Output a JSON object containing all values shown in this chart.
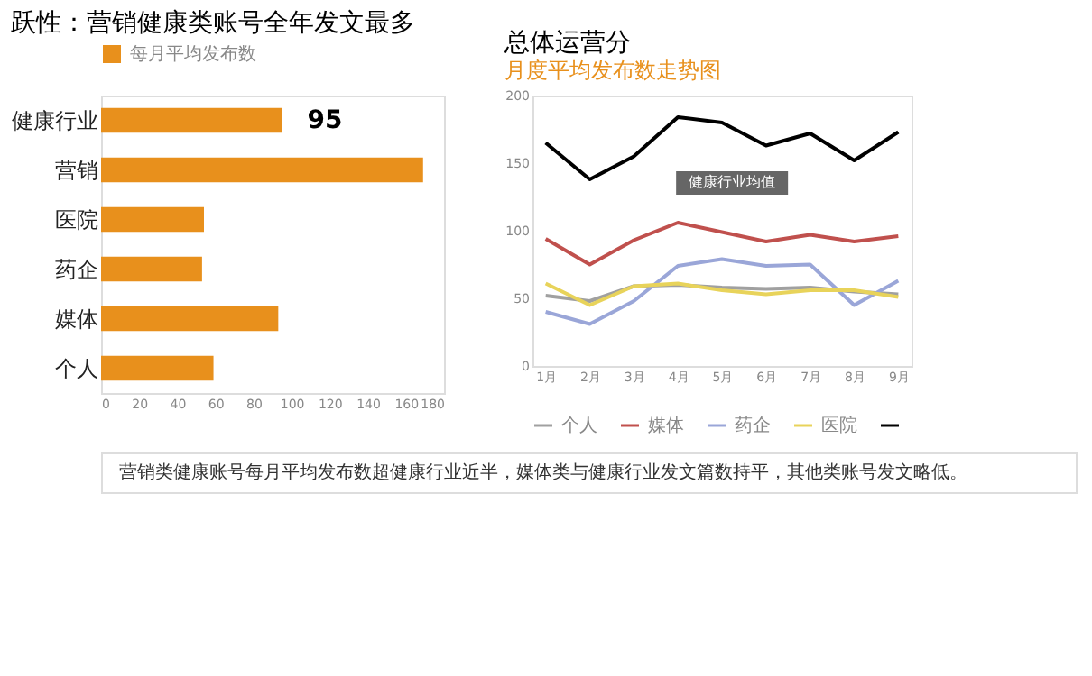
{
  "chart_data": [
    {
      "type": "bar",
      "orientation": "horizontal",
      "title": "跃性：营销健康类账号全年发文最多",
      "categories": [
        "健康行业",
        "营销",
        "医院",
        "药企",
        "媒体",
        "个人"
      ],
      "series": [
        {
          "name": "每月平均发布数",
          "color": "#e8901c",
          "values": [
            95,
            169,
            54,
            53,
            93,
            59
          ],
          "value_labels": [
            "95",
            null,
            null,
            null,
            null,
            null
          ]
        }
      ],
      "xlim": [
        0,
        180
      ],
      "xticks": [
        0,
        20,
        40,
        60,
        80,
        100,
        120,
        140,
        160,
        180
      ],
      "grid": false,
      "legend": "top",
      "annotations": [
        "营销类健康账号每月平均发布数超健康行业近半，媒体类与健康行业发文篇数持平，其他类账号发文略低。"
      ]
    },
    {
      "type": "line",
      "title": "总体运营分",
      "subtitle": "月度平均发布数走势图",
      "categories": [
        "1月",
        "2月",
        "3月",
        "4月",
        "5月",
        "6月",
        "7月",
        "8月",
        "9月"
      ],
      "series": [
        {
          "name": "个人",
          "color": "#a0a0a0",
          "values": [
            52,
            48,
            59,
            60,
            58,
            57,
            58,
            55,
            53
          ]
        },
        {
          "name": "媒体",
          "color": "#c0504d",
          "values": [
            94,
            75,
            93,
            106,
            99,
            92,
            97,
            92,
            96
          ]
        },
        {
          "name": "药企",
          "color": "#9aa6d8",
          "values": [
            40,
            31,
            48,
            74,
            79,
            74,
            75,
            45,
            63
          ]
        },
        {
          "name": "医院",
          "color": "#e8d35a",
          "values": [
            61,
            45,
            59,
            61,
            56,
            53,
            56,
            56,
            51
          ]
        },
        {
          "color": "#000000",
          "values": [
            165,
            138,
            155,
            184,
            180,
            163,
            172,
            152,
            173
          ]
        }
      ],
      "ylim": [
        0,
        200
      ],
      "yticks": [
        0,
        50,
        100,
        150,
        200
      ],
      "grid": false,
      "legend": "bottom",
      "annotations": [
        {
          "text": "健康行业均值",
          "x": "4月",
          "y": 106
        }
      ]
    }
  ]
}
